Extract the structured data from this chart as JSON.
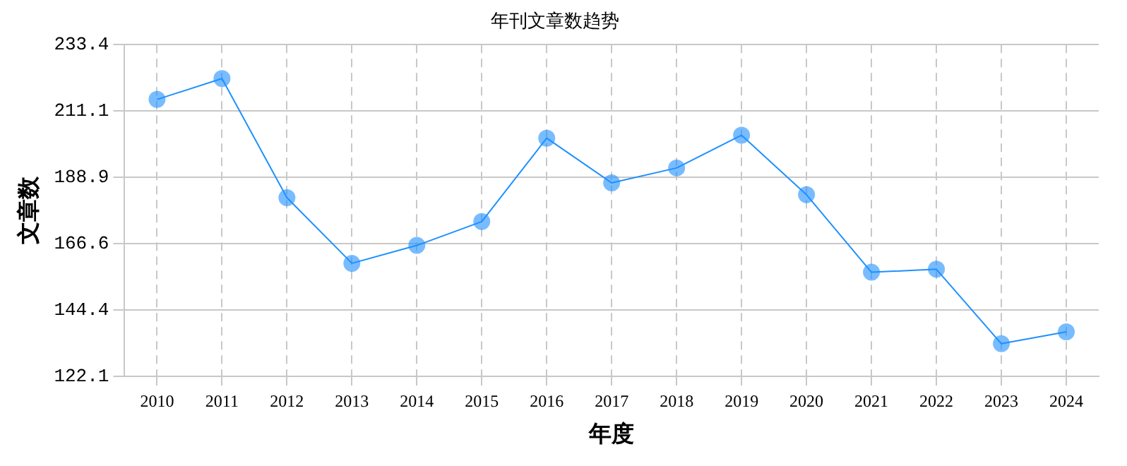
{
  "chart_data": {
    "type": "line",
    "title": "年刊文章数趋势",
    "xlabel": "年度",
    "ylabel": "文章数",
    "categories": [
      "2010",
      "2011",
      "2012",
      "2013",
      "2014",
      "2015",
      "2016",
      "2017",
      "2018",
      "2019",
      "2020",
      "2021",
      "2022",
      "2023",
      "2024"
    ],
    "series": [
      {
        "color": "#1e90ff",
        "values": [
          215,
          222,
          182,
          160,
          166,
          174,
          202,
          187,
          192,
          203,
          183,
          157,
          158,
          133,
          137
        ]
      }
    ],
    "ylim": [
      122.1,
      233.4
    ],
    "yticks": [
      122.1,
      144.4,
      166.6,
      188.9,
      211.1,
      233.4
    ],
    "grid": true,
    "marker": "circle",
    "line_style": "solid",
    "legend": false
  }
}
